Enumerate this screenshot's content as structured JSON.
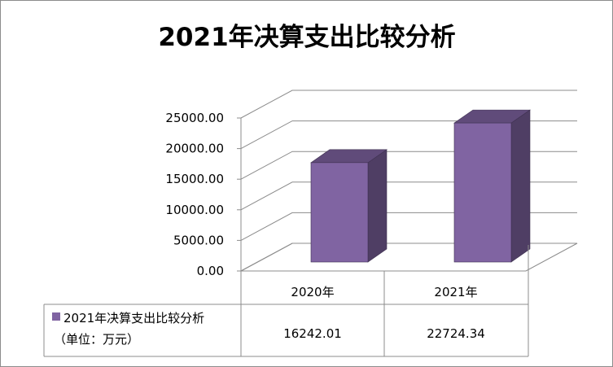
{
  "chart_data": {
    "type": "bar",
    "title": "2021年决算支出比较分析",
    "categories": [
      "2020年",
      "2021年"
    ],
    "series": [
      {
        "name": "2021年决算支出比较分析（单位：万元）",
        "values": [
          16242.01,
          22724.34
        ],
        "value_labels": [
          "16242.01",
          "22724.34"
        ],
        "color": "#8064a2"
      }
    ],
    "ylim": [
      0,
      25000
    ],
    "y_ticks": [
      0,
      5000,
      10000,
      15000,
      20000,
      25000
    ],
    "y_tick_labels": [
      "0.00",
      "5000.00",
      "10000.00",
      "15000.00",
      "20000.00",
      "25000.00"
    ],
    "grid": true,
    "legend": "data-table-left",
    "three_d": true,
    "data_table": true
  }
}
